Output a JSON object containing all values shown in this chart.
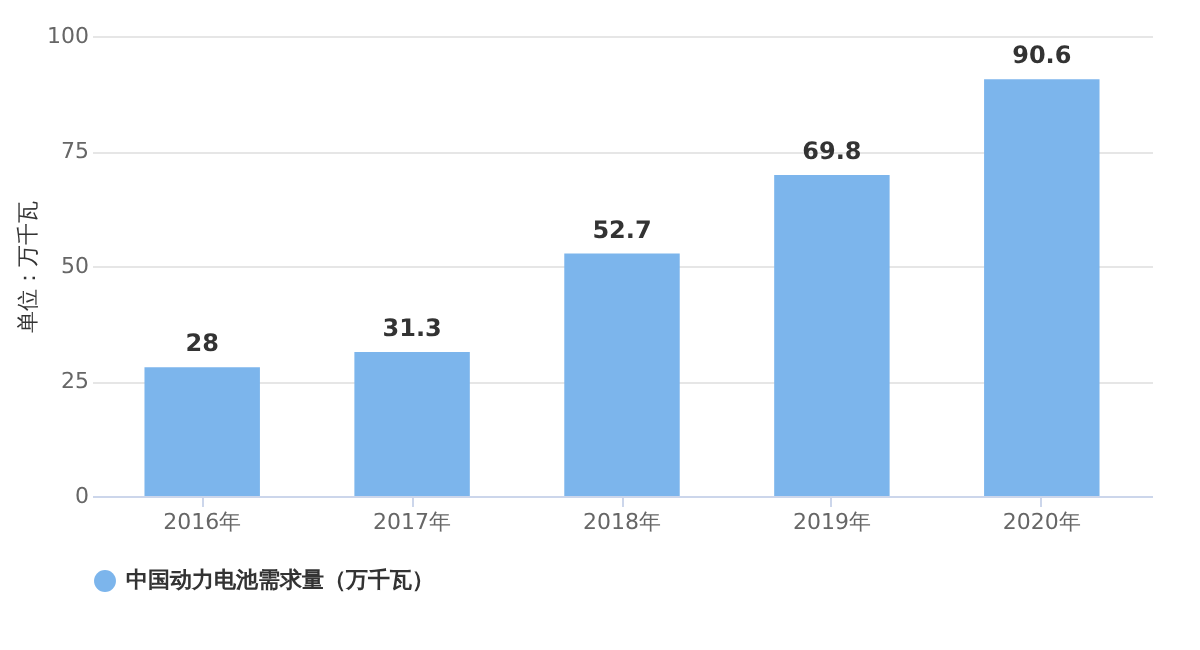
{
  "chart_data": {
    "type": "bar",
    "ylabel": "单位：万千瓦",
    "categories": [
      "2016年",
      "2017年",
      "2018年",
      "2019年",
      "2020年"
    ],
    "series": [
      {
        "name": "中国动力电池需求量（万千瓦）",
        "color": "#7cb5ec",
        "values": [
          28,
          31.3,
          52.7,
          69.8,
          90.6
        ]
      }
    ],
    "ylim": [
      0,
      100
    ],
    "yticks": [
      0,
      25,
      50,
      75,
      100
    ],
    "grid": "y",
    "legend": "bottom",
    "data_labels": true
  }
}
